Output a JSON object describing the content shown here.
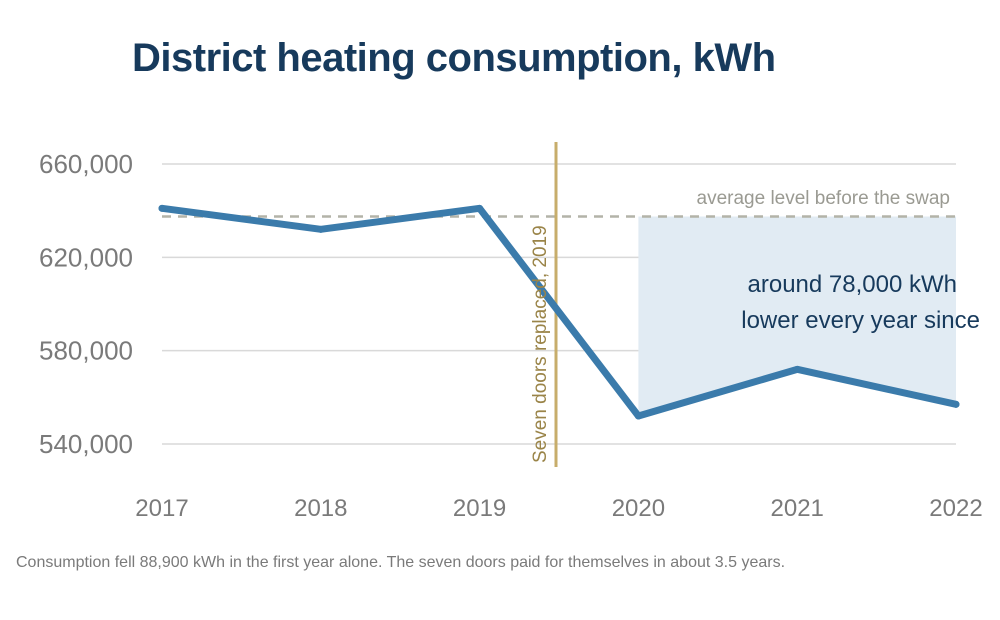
{
  "chart_data": {
    "type": "line",
    "title": "District heating consumption, kWh",
    "x": [
      "2017",
      "2018",
      "2019",
      "2020",
      "2021",
      "2022"
    ],
    "series": [
      {
        "values": [
          641000,
          632000,
          641000,
          552000,
          572000,
          557000
        ]
      }
    ],
    "ylim": [
      530000,
      668000
    ],
    "yticks": [
      540000,
      580000,
      620000,
      660000
    ],
    "ytick_labels": [
      "540,000",
      "580,000",
      "620,000",
      "660,000"
    ],
    "grid": true,
    "reference_line": {
      "y": 637500,
      "label": "average level before the swap"
    },
    "event_marker": {
      "x": 2019.5,
      "label": "Seven doors replaced, 2019"
    },
    "shaded_region": {
      "x_from": 2020,
      "x_to": 2022,
      "label_line1": "around 78,000 kWh",
      "label_line2": "lower every year since"
    },
    "note": "Consumption fell 88,900 kWh in the first year alone. The seven doors paid for themselves in about 3.5 years.",
    "colors": {
      "title": "#173a5c",
      "line": "#3b7bab",
      "gridline": "#d9d9d9",
      "tick_label": "#7a7a7a",
      "reference": "#b3b3a8",
      "event": "#c7ad6b",
      "event_label": "#9a8448",
      "shade": "#e1ebf3",
      "shade_label": "#173a5c"
    }
  }
}
